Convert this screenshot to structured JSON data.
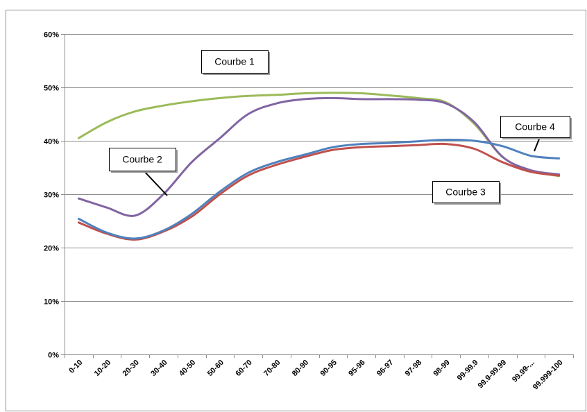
{
  "chart_data": {
    "type": "line",
    "title": "",
    "xlabel": "",
    "ylabel": "",
    "ylim": [
      0,
      0.6
    ],
    "y_ticks": [
      0,
      0.1,
      0.2,
      0.3,
      0.4,
      0.5,
      0.6
    ],
    "y_tick_labels": [
      "0%",
      "10%",
      "20%",
      "30%",
      "40%",
      "50%",
      "60%"
    ],
    "grid": true,
    "categories": [
      "0-10",
      "10-20",
      "20-30",
      "30-40",
      "40-50",
      "50-60",
      "60-70",
      "70-80",
      "80-90",
      "90-95",
      "95-96",
      "96-97",
      "97-98",
      "98-99",
      "99-99.9",
      "99.9-99.99",
      "99.99-...",
      "99.999-100"
    ],
    "series": [
      {
        "name": "Courbe 1",
        "color": "#9BBB59",
        "values": [
          0.405,
          0.435,
          0.455,
          0.466,
          0.474,
          0.48,
          0.484,
          0.486,
          0.489,
          0.49,
          0.489,
          0.485,
          0.48,
          0.472,
          0.432,
          0.37,
          0.344,
          0.334
        ]
      },
      {
        "name": "Courbe 2",
        "color": "#8064A2",
        "values": [
          0.292,
          0.275,
          0.26,
          0.3,
          0.36,
          0.405,
          0.45,
          0.47,
          0.478,
          0.48,
          0.478,
          0.478,
          0.477,
          0.47,
          0.435,
          0.37,
          0.345,
          0.337
        ]
      },
      {
        "name": "Courbe 3",
        "color": "#C0504D",
        "values": [
          0.247,
          0.226,
          0.215,
          0.23,
          0.258,
          0.3,
          0.335,
          0.355,
          0.37,
          0.383,
          0.388,
          0.39,
          0.392,
          0.394,
          0.385,
          0.36,
          0.342,
          0.335
        ]
      },
      {
        "name": "Courbe 4",
        "color": "#4F81BD",
        "values": [
          0.254,
          0.228,
          0.217,
          0.232,
          0.263,
          0.305,
          0.34,
          0.36,
          0.374,
          0.388,
          0.394,
          0.396,
          0.399,
          0.402,
          0.4,
          0.39,
          0.372,
          0.367
        ]
      }
    ],
    "annotations": [
      {
        "text": "Courbe 1",
        "series": "Courbe 1"
      },
      {
        "text": "Courbe 2",
        "series": "Courbe 2"
      },
      {
        "text": "Courbe 3",
        "series": "Courbe 3"
      },
      {
        "text": "Courbe 4",
        "series": "Courbe 4"
      }
    ]
  }
}
